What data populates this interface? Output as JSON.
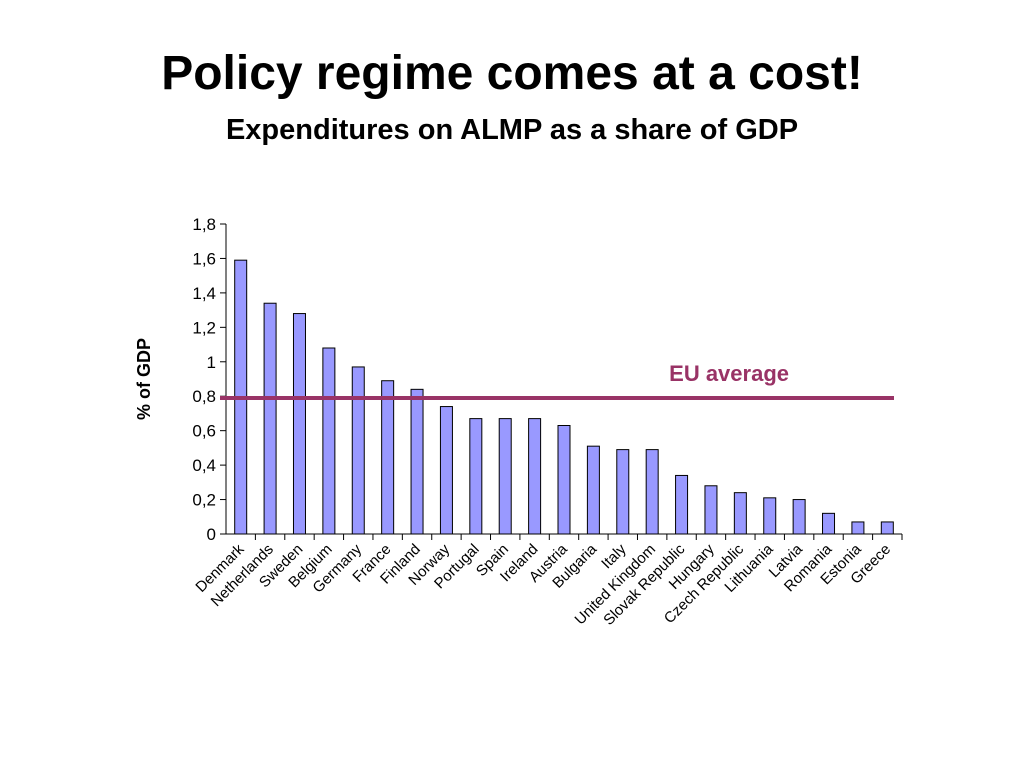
{
  "slide": {
    "title": "Policy regime comes at a cost!",
    "subtitle": "Expenditures on ALMP as a share of GDP"
  },
  "colors": {
    "bar_fill": "#9999ff",
    "bar_stroke": "#000000",
    "reference_line": "#993366"
  },
  "chart_data": {
    "type": "bar",
    "title": "",
    "xlabel": "",
    "ylabel": "% of GDP",
    "ylim": [
      0,
      1.8
    ],
    "yticks": [
      "0",
      "0,2",
      "0,4",
      "0,6",
      "0,8",
      "1",
      "1,2",
      "1,4",
      "1,6",
      "1,8"
    ],
    "ytick_values": [
      0,
      0.2,
      0.4,
      0.6,
      0.8,
      1.0,
      1.2,
      1.4,
      1.6,
      1.8
    ],
    "grid": false,
    "legend": "none",
    "categories": [
      "Denmark",
      "Netherlands",
      "Sweden",
      "Belgium",
      "Germany",
      "France",
      "Finland",
      "Norway",
      "Portugal",
      "Spain",
      "Ireland",
      "Austria",
      "Bulgaria",
      "Italy",
      "United Kingdom",
      "Slovak Republic",
      "Hungary",
      "Czech Republic",
      "Lithuania",
      "Latvia",
      "Romania",
      "Estonia",
      "Greece"
    ],
    "values": [
      1.59,
      1.34,
      1.28,
      1.08,
      0.97,
      0.89,
      0.84,
      0.74,
      0.67,
      0.67,
      0.67,
      0.63,
      0.51,
      0.49,
      0.49,
      0.34,
      0.28,
      0.24,
      0.21,
      0.2,
      0.12,
      0.07,
      0.07
    ],
    "reference_line": {
      "label": "EU average",
      "value": 0.79
    }
  }
}
